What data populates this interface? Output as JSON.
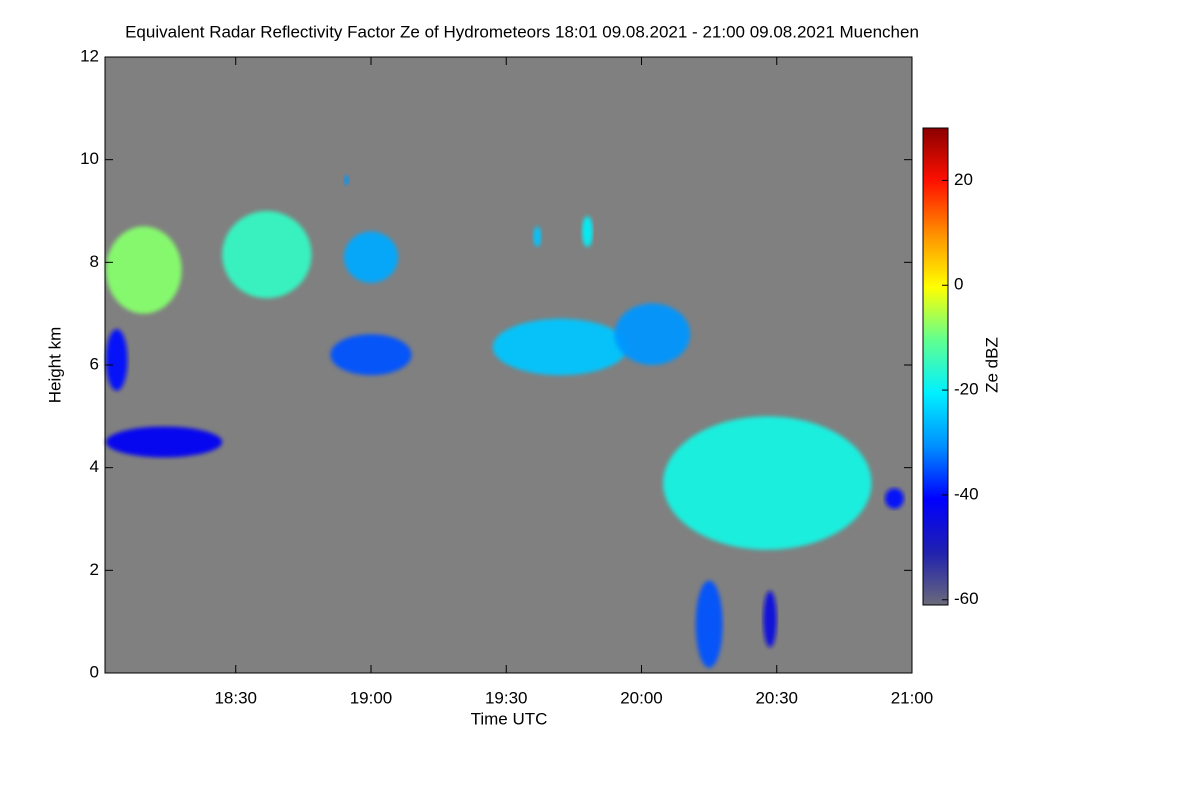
{
  "chart_data": {
    "type": "radar-echoes",
    "title": "Equivalent Radar Reflectivity Factor Ze of Hydrometeors   18:01 09.08.2021 - 21:00 09.08.2021 Muenchen",
    "x_label": "Time UTC",
    "y_label": "Height km",
    "colorbar_label": "Ze dBZ",
    "xlim": [
      18.0167,
      21.0
    ],
    "xticks": [
      {
        "value": 18.5,
        "label": "18:30"
      },
      {
        "value": 19.0,
        "label": "19:00"
      },
      {
        "value": 19.5,
        "label": "19:30"
      },
      {
        "value": 20.0,
        "label": "20:00"
      },
      {
        "value": 20.5,
        "label": "20:30"
      },
      {
        "value": 21.0,
        "label": "21:00"
      }
    ],
    "ylim": [
      0,
      12
    ],
    "yticks": [
      0,
      2,
      4,
      6,
      8,
      10,
      12
    ],
    "clim": [
      -61,
      30
    ],
    "cticks": [
      -60,
      -40,
      -20,
      0,
      20
    ],
    "colors": [
      "#6a6a7a",
      "#2020b0",
      "#0000ff",
      "#0090ff",
      "#00f0ff",
      "#60ff90",
      "#ffff00",
      "#ff9000",
      "#ff1000",
      "#8b0000"
    ],
    "background": "#808080",
    "echoes": [
      {
        "x": [
          18.02,
          18.3
        ],
        "y": [
          7.0,
          8.7
        ],
        "ze": -8
      },
      {
        "x": [
          18.45,
          18.78
        ],
        "y": [
          7.3,
          9.0
        ],
        "ze": -15
      },
      {
        "x": [
          18.9,
          19.1
        ],
        "y": [
          7.6,
          8.6
        ],
        "ze": -28
      },
      {
        "x": [
          18.02,
          18.1
        ],
        "y": [
          5.5,
          6.7
        ],
        "ze": -40
      },
      {
        "x": [
          18.85,
          19.15
        ],
        "y": [
          5.8,
          6.6
        ],
        "ze": -35
      },
      {
        "x": [
          19.45,
          19.95
        ],
        "y": [
          5.8,
          6.9
        ],
        "ze": -25
      },
      {
        "x": [
          19.9,
          20.18
        ],
        "y": [
          6.0,
          7.2
        ],
        "ze": -30
      },
      {
        "x": [
          18.02,
          18.45
        ],
        "y": [
          4.2,
          4.8
        ],
        "ze": -42
      },
      {
        "x": [
          20.08,
          20.85
        ],
        "y": [
          2.4,
          5.0
        ],
        "ze": -18
      },
      {
        "x": [
          20.2,
          20.3
        ],
        "y": [
          0.1,
          1.8
        ],
        "ze": -35
      },
      {
        "x": [
          20.45,
          20.5
        ],
        "y": [
          0.5,
          1.6
        ],
        "ze": -45
      },
      {
        "x": [
          20.9,
          20.97
        ],
        "y": [
          3.2,
          3.6
        ],
        "ze": -40
      },
      {
        "x": [
          19.78,
          19.82
        ],
        "y": [
          8.3,
          8.9
        ],
        "ze": -20
      },
      {
        "x": [
          19.6,
          19.63
        ],
        "y": [
          8.3,
          8.7
        ],
        "ze": -25
      },
      {
        "x": [
          18.9,
          18.92
        ],
        "y": [
          9.5,
          9.7
        ],
        "ze": -30
      }
    ]
  }
}
